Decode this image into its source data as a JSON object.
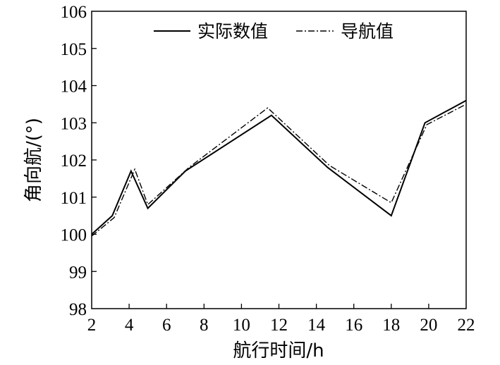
{
  "chart_data": {
    "type": "line",
    "xlabel": "航行时间/h",
    "ylabel": "角向航/(°)",
    "xlim": [
      2,
      22
    ],
    "ylim": [
      98,
      106
    ],
    "xticks": [
      "2",
      "4",
      "6",
      "8",
      "10",
      "12",
      "14",
      "16",
      "18",
      "20",
      "22"
    ],
    "yticks": [
      "98",
      "99",
      "100",
      "101",
      "102",
      "103",
      "104",
      "105",
      "106"
    ],
    "grid": false,
    "legend_position": "top-center",
    "series": [
      {
        "name": "实际数值",
        "style": "solid",
        "x": [
          2.0,
          3.1,
          4.1,
          5.0,
          7.0,
          11.6,
          14.6,
          18.0,
          19.8,
          22.0
        ],
        "y": [
          100.0,
          100.5,
          101.7,
          100.7,
          101.7,
          103.2,
          101.8,
          100.5,
          103.0,
          103.6
        ]
      },
      {
        "name": "导航值",
        "style": "dashdot",
        "x": [
          2.0,
          3.2,
          4.3,
          5.0,
          7.2,
          11.4,
          14.7,
          18.0,
          19.9,
          22.0
        ],
        "y": [
          99.95,
          100.45,
          101.75,
          100.8,
          101.8,
          103.4,
          101.85,
          100.85,
          102.95,
          103.5
        ]
      }
    ]
  }
}
